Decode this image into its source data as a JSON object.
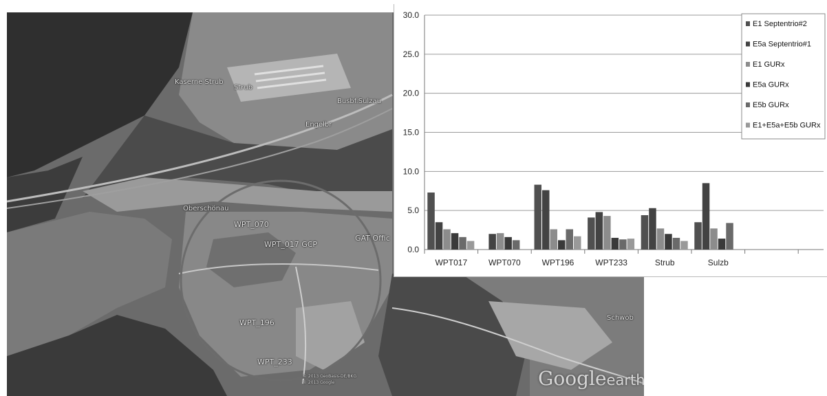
{
  "map": {
    "place_labels": [
      {
        "key": "kaserne",
        "text": "Kaserne Strub"
      },
      {
        "key": "strub",
        "text": "Strub"
      },
      {
        "key": "busbf",
        "text": "Busbf.Sulzau"
      },
      {
        "key": "engelbr",
        "text": "Engelbr"
      },
      {
        "key": "oberschoenau",
        "text": "Oberschönau"
      },
      {
        "key": "wpt070",
        "text": "WPT_070"
      },
      {
        "key": "wpt017",
        "text": "WPT_017 GCP"
      },
      {
        "key": "gat",
        "text": "GAT Offic"
      },
      {
        "key": "wpt196",
        "text": "WPT_196"
      },
      {
        "key": "wpt233",
        "text": "WPT_233"
      },
      {
        "key": "schwob",
        "text": "Schwob"
      }
    ],
    "attribution_1": "© 2013 GeoBasis-DE/BKG",
    "attribution_2": "© 2013 Google",
    "logo_google": "Google",
    "logo_earth": "earth"
  },
  "chart_data": {
    "type": "bar",
    "categories": [
      "WPT017",
      "WPT070",
      "WPT196",
      "WPT233",
      "Strub",
      "Sulzb"
    ],
    "series": [
      {
        "name": "E1 Septentrio#2",
        "color": "#505050",
        "values": [
          7.3,
          0.0,
          8.3,
          4.1,
          4.4,
          3.5
        ]
      },
      {
        "name": "E5a Septentrio#1",
        "color": "#434343",
        "values": [
          3.5,
          2.0,
          7.6,
          4.8,
          5.3,
          8.5
        ]
      },
      {
        "name": "E1 GURx",
        "color": "#8c8c8c",
        "values": [
          2.6,
          2.1,
          2.6,
          4.3,
          2.7,
          2.7
        ]
      },
      {
        "name": "E5a GURx",
        "color": "#3a3a3a",
        "values": [
          2.1,
          1.6,
          1.2,
          1.5,
          2.0,
          1.4
        ]
      },
      {
        "name": "E5b GURx",
        "color": "#6a6a6a",
        "values": [
          1.6,
          1.2,
          2.6,
          1.3,
          1.5,
          3.4
        ]
      },
      {
        "name": "E1+E5a+E5b GURx",
        "color": "#999999",
        "values": [
          1.1,
          null,
          1.7,
          1.4,
          1.1,
          null
        ]
      }
    ],
    "ylim": [
      0,
      30
    ],
    "yticks": [
      "0.0",
      "5.0",
      "10.0",
      "15.0",
      "20.0",
      "25.0",
      "30.0"
    ],
    "grid": true,
    "legend_position": "top-right"
  }
}
